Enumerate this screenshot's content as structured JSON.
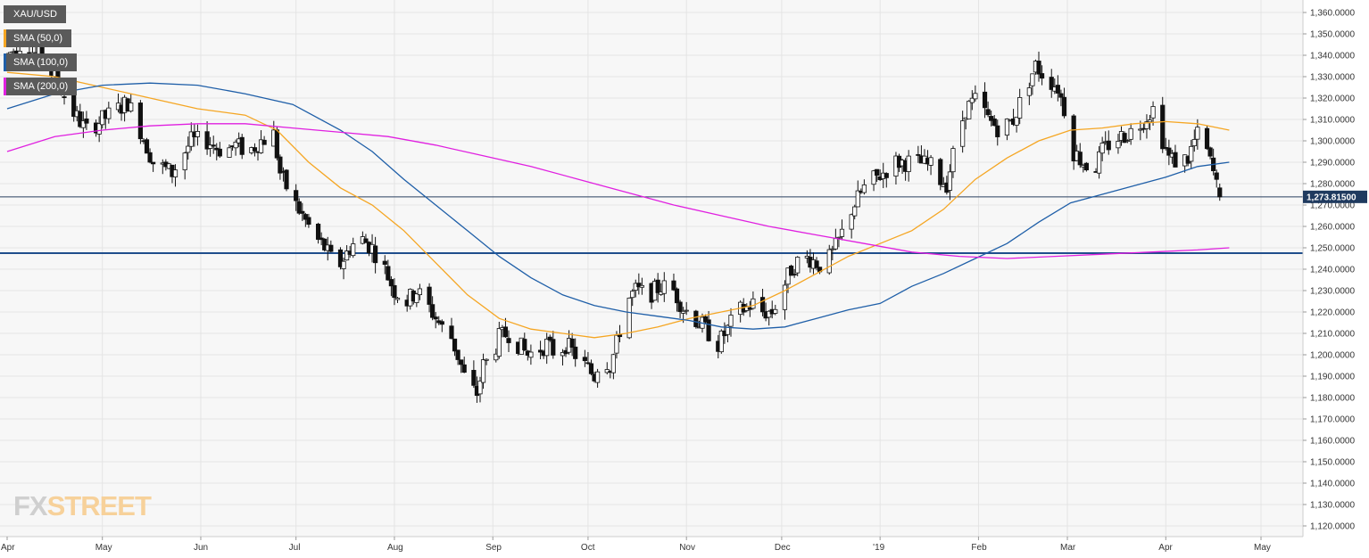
{
  "chart_data": {
    "type": "candlestick",
    "symbol": "XAU/USD",
    "current_price": 1273.815,
    "current_price_label": "1,273.81500",
    "support_level": 1247.5,
    "ylim": [
      1115,
      1365
    ],
    "y_ticks": [
      1120,
      1130,
      1140,
      1150,
      1160,
      1170,
      1180,
      1190,
      1200,
      1210,
      1220,
      1230,
      1240,
      1250,
      1260,
      1270,
      1280,
      1290,
      1300,
      1310,
      1320,
      1330,
      1340,
      1350,
      1360
    ],
    "x_months": [
      {
        "label": "Apr",
        "day": 0
      },
      {
        "label": "May",
        "day": 30
      },
      {
        "label": "Jun",
        "day": 61
      },
      {
        "label": "Jul",
        "day": 91
      },
      {
        "label": "Aug",
        "day": 122
      },
      {
        "label": "Sep",
        "day": 153
      },
      {
        "label": "Oct",
        "day": 183
      },
      {
        "label": "Nov",
        "day": 214
      },
      {
        "label": "Dec",
        "day": 244
      },
      {
        "label": "'19",
        "day": 275
      },
      {
        "label": "Feb",
        "day": 306
      },
      {
        "label": "Mar",
        "day": 334
      },
      {
        "label": "Apr",
        "day": 365
      },
      {
        "label": "May",
        "day": 395
      }
    ],
    "candles_anchor": [
      [
        0,
        1340
      ],
      [
        4,
        1345
      ],
      [
        10,
        1340
      ],
      [
        15,
        1330
      ],
      [
        20,
        1315
      ],
      [
        25,
        1305
      ],
      [
        30,
        1310
      ],
      [
        38,
        1318
      ],
      [
        42,
        1305
      ],
      [
        46,
        1290
      ],
      [
        52,
        1285
      ],
      [
        58,
        1300
      ],
      [
        63,
        1300
      ],
      [
        68,
        1295
      ],
      [
        72,
        1298
      ],
      [
        76,
        1295
      ],
      [
        80,
        1300
      ],
      [
        84,
        1303
      ],
      [
        86,
        1285
      ],
      [
        89,
        1275
      ],
      [
        93,
        1265
      ],
      [
        97,
        1255
      ],
      [
        100,
        1250
      ],
      [
        104,
        1240
      ],
      [
        108,
        1250
      ],
      [
        111,
        1255
      ],
      [
        115,
        1250
      ],
      [
        119,
        1240
      ],
      [
        122,
        1230
      ],
      [
        126,
        1225
      ],
      [
        129,
        1230
      ],
      [
        133,
        1222
      ],
      [
        136,
        1215
      ],
      [
        138,
        1210
      ],
      [
        140,
        1208
      ],
      [
        143,
        1195
      ],
      [
        145,
        1185
      ],
      [
        148,
        1182
      ],
      [
        150,
        1195
      ],
      [
        153,
        1200
      ],
      [
        155,
        1208
      ],
      [
        158,
        1210
      ],
      [
        161,
        1205
      ],
      [
        164,
        1200
      ],
      [
        167,
        1202
      ],
      [
        170,
        1205
      ],
      [
        173,
        1200
      ],
      [
        176,
        1205
      ],
      [
        179,
        1200
      ],
      [
        182,
        1195
      ],
      [
        185,
        1190
      ],
      [
        187,
        1200
      ],
      [
        190,
        1195
      ],
      [
        192,
        1205
      ],
      [
        195,
        1225
      ],
      [
        198,
        1230
      ],
      [
        202,
        1228
      ],
      [
        206,
        1232
      ],
      [
        210,
        1230
      ],
      [
        213,
        1222
      ],
      [
        216,
        1218
      ],
      [
        220,
        1212
      ],
      [
        224,
        1205
      ],
      [
        227,
        1212
      ],
      [
        230,
        1220
      ],
      [
        233,
        1222
      ],
      [
        236,
        1225
      ],
      [
        238,
        1220
      ],
      [
        241,
        1220
      ],
      [
        244,
        1230
      ],
      [
        247,
        1240
      ],
      [
        250,
        1245
      ],
      [
        253,
        1245
      ],
      [
        256,
        1242
      ],
      [
        259,
        1245
      ],
      [
        261,
        1250
      ],
      [
        264,
        1260
      ],
      [
        266,
        1268
      ],
      [
        270,
        1278
      ],
      [
        273,
        1282
      ],
      [
        276,
        1285
      ],
      [
        279,
        1290
      ],
      [
        283,
        1290
      ],
      [
        287,
        1290
      ],
      [
        291,
        1288
      ],
      [
        294,
        1282
      ],
      [
        296,
        1280
      ],
      [
        299,
        1300
      ],
      [
        302,
        1315
      ],
      [
        306,
        1320
      ],
      [
        309,
        1310
      ],
      [
        313,
        1305
      ],
      [
        317,
        1310
      ],
      [
        321,
        1325
      ],
      [
        324,
        1335
      ],
      [
        327,
        1330
      ],
      [
        331,
        1325
      ],
      [
        334,
        1310
      ],
      [
        336,
        1295
      ],
      [
        339,
        1290
      ],
      [
        342,
        1285
      ],
      [
        345,
        1295
      ],
      [
        348,
        1300
      ],
      [
        351,
        1302
      ],
      [
        355,
        1305
      ],
      [
        358,
        1310
      ],
      [
        361,
        1315
      ],
      [
        363,
        1305
      ],
      [
        366,
        1292
      ],
      [
        369,
        1290
      ],
      [
        372,
        1292
      ],
      [
        374,
        1300
      ],
      [
        376,
        1305
      ],
      [
        378,
        1295
      ],
      [
        380,
        1285
      ],
      [
        382,
        1273
      ]
    ],
    "ohlc": [
      {
        "x": 382,
        "open": 1278,
        "high": 1280,
        "low": 1272,
        "close": 1273.8
      }
    ],
    "series": [
      {
        "name": "SMA (50,0)",
        "color": "#f5a623",
        "points": [
          [
            0,
            1332
          ],
          [
            15,
            1330
          ],
          [
            30,
            1325
          ],
          [
            45,
            1320
          ],
          [
            60,
            1315
          ],
          [
            75,
            1312
          ],
          [
            85,
            1305
          ],
          [
            95,
            1290
          ],
          [
            105,
            1278
          ],
          [
            115,
            1270
          ],
          [
            125,
            1258
          ],
          [
            135,
            1243
          ],
          [
            145,
            1228
          ],
          [
            155,
            1217
          ],
          [
            165,
            1212
          ],
          [
            175,
            1210
          ],
          [
            185,
            1208
          ],
          [
            195,
            1210
          ],
          [
            205,
            1213
          ],
          [
            215,
            1217
          ],
          [
            225,
            1220
          ],
          [
            235,
            1223
          ],
          [
            245,
            1230
          ],
          [
            255,
            1238
          ],
          [
            265,
            1246
          ],
          [
            275,
            1252
          ],
          [
            285,
            1258
          ],
          [
            295,
            1268
          ],
          [
            305,
            1282
          ],
          [
            315,
            1292
          ],
          [
            325,
            1300
          ],
          [
            335,
            1305
          ],
          [
            345,
            1306
          ],
          [
            355,
            1308
          ],
          [
            365,
            1309
          ],
          [
            375,
            1308
          ],
          [
            385,
            1305
          ]
        ]
      },
      {
        "name": "SMA (100,0)",
        "color": "#1f5fa8",
        "points": [
          [
            0,
            1315
          ],
          [
            15,
            1322
          ],
          [
            30,
            1326
          ],
          [
            45,
            1327
          ],
          [
            60,
            1326
          ],
          [
            75,
            1322
          ],
          [
            90,
            1317
          ],
          [
            105,
            1305
          ],
          [
            115,
            1295
          ],
          [
            125,
            1282
          ],
          [
            135,
            1270
          ],
          [
            145,
            1258
          ],
          [
            155,
            1246
          ],
          [
            165,
            1236
          ],
          [
            175,
            1228
          ],
          [
            185,
            1223
          ],
          [
            195,
            1220
          ],
          [
            205,
            1218
          ],
          [
            215,
            1216
          ],
          [
            225,
            1213
          ],
          [
            235,
            1212
          ],
          [
            245,
            1213
          ],
          [
            255,
            1217
          ],
          [
            265,
            1221
          ],
          [
            275,
            1224
          ],
          [
            285,
            1232
          ],
          [
            295,
            1238
          ],
          [
            305,
            1245
          ],
          [
            315,
            1252
          ],
          [
            325,
            1262
          ],
          [
            335,
            1271
          ],
          [
            345,
            1275
          ],
          [
            355,
            1279
          ],
          [
            365,
            1283
          ],
          [
            375,
            1288
          ],
          [
            385,
            1290
          ]
        ]
      },
      {
        "name": "SMA (200,0)",
        "color": "#e020e0",
        "points": [
          [
            0,
            1295
          ],
          [
            15,
            1302
          ],
          [
            30,
            1305
          ],
          [
            45,
            1307
          ],
          [
            60,
            1308
          ],
          [
            75,
            1308
          ],
          [
            90,
            1306
          ],
          [
            105,
            1304
          ],
          [
            120,
            1302
          ],
          [
            135,
            1298
          ],
          [
            150,
            1293
          ],
          [
            165,
            1288
          ],
          [
            180,
            1282
          ],
          [
            195,
            1276
          ],
          [
            210,
            1270
          ],
          [
            225,
            1265
          ],
          [
            240,
            1260
          ],
          [
            255,
            1256
          ],
          [
            270,
            1252
          ],
          [
            285,
            1248
          ],
          [
            300,
            1246
          ],
          [
            315,
            1245
          ],
          [
            330,
            1246
          ],
          [
            345,
            1247
          ],
          [
            360,
            1248
          ],
          [
            375,
            1249
          ],
          [
            385,
            1250
          ]
        ]
      }
    ]
  },
  "watermark": {
    "fx": "FX",
    "street": "STREET"
  }
}
